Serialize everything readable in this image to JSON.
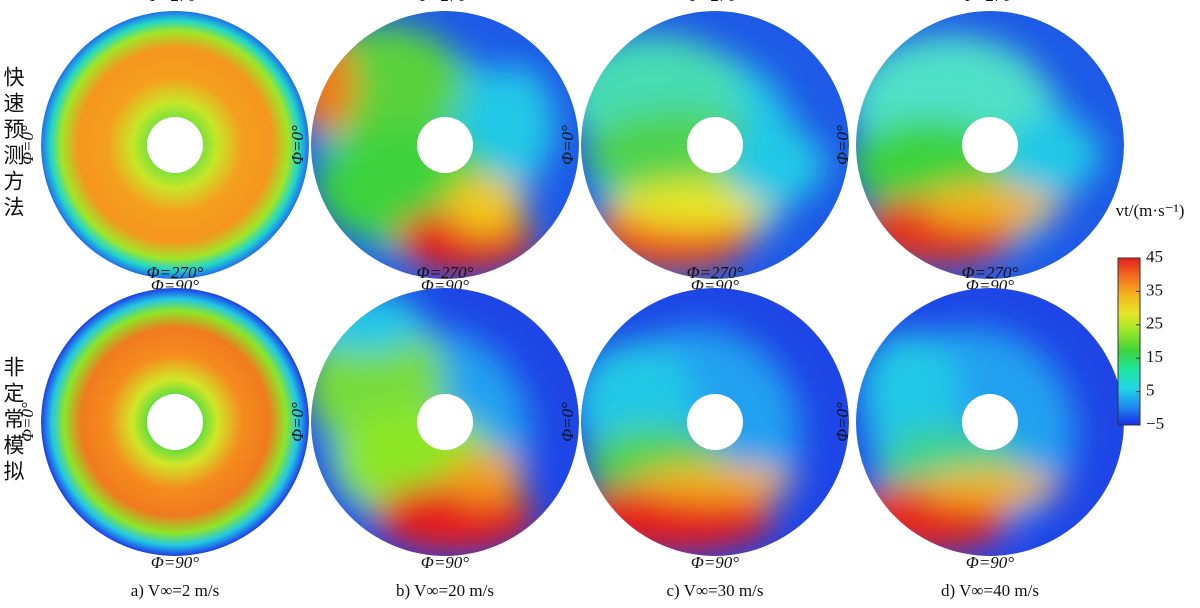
{
  "rows": [
    {
      "label": "快速预测方法"
    },
    {
      "label": "非定常模拟"
    }
  ],
  "columns": [
    {
      "caption": "a)  V∞=2 m/s"
    },
    {
      "caption": "b)  V∞=20 m/s"
    },
    {
      "caption": "c)  V∞=30 m/s"
    },
    {
      "caption": "d)  V∞=40 m/s"
    }
  ],
  "angle_labels": {
    "top": "Φ=270°",
    "bottom": "Φ=90°",
    "left": "Φ=0°"
  },
  "colorbar": {
    "title": "vt/(m·s⁻¹)",
    "lim": [
      -5,
      45
    ],
    "ticks": [
      45,
      35,
      25,
      15,
      5,
      {
        "value": -5,
        "label": "−5"
      }
    ],
    "colors": [
      "#1a2ee6",
      "#1e8cf0",
      "#22d7e6",
      "#1ee6a0",
      "#3cd23c",
      "#96e628",
      "#e6e628",
      "#f5b41e",
      "#f06e1e",
      "#e61e1e"
    ]
  }
}
